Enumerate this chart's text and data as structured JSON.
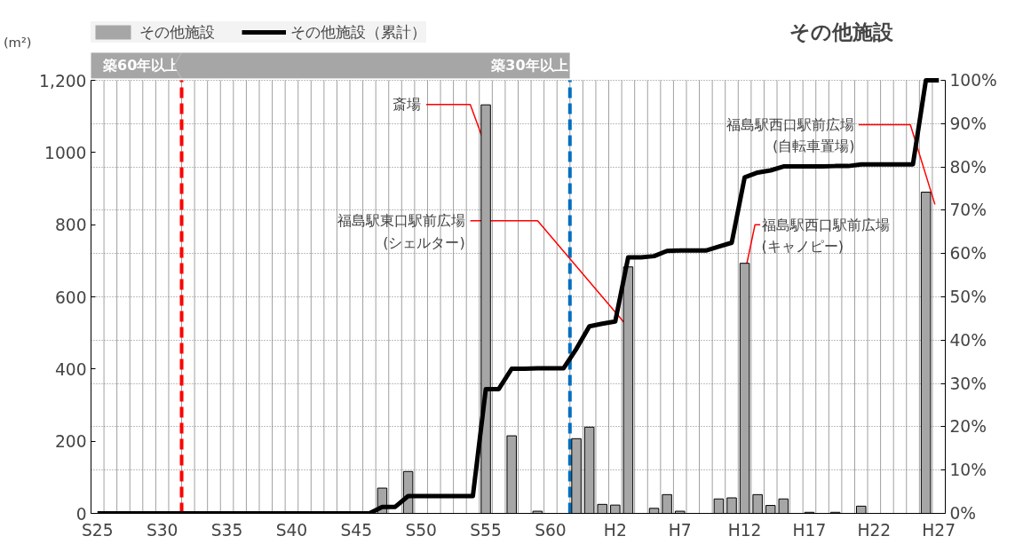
{
  "chart_data": {
    "type": "bar",
    "title": "その他施設",
    "ylabel": "(m²)",
    "categories": [
      "S25",
      null,
      null,
      null,
      null,
      "S30",
      null,
      null,
      null,
      null,
      "S35",
      null,
      null,
      null,
      null,
      "S40",
      null,
      null,
      null,
      null,
      "S45",
      null,
      null,
      null,
      null,
      "S50",
      null,
      null,
      null,
      null,
      "S55",
      null,
      null,
      null,
      null,
      "S60",
      null,
      null,
      null,
      null,
      "H2",
      null,
      null,
      null,
      null,
      "H7",
      null,
      null,
      null,
      null,
      "H12",
      null,
      null,
      null,
      null,
      "H17",
      null,
      null,
      null,
      null,
      "H22",
      null,
      null,
      null,
      null,
      "H27"
    ],
    "series": [
      {
        "name": "その他施設",
        "color": "#a6a6a6",
        "values": [
          0,
          0,
          0,
          0,
          0,
          0,
          0,
          0,
          0,
          0,
          0,
          0,
          0,
          0,
          0,
          0,
          0,
          0,
          0,
          0,
          0,
          0,
          70,
          0,
          116,
          0,
          0,
          0,
          0,
          0,
          1132,
          0,
          215,
          0,
          6,
          0,
          0,
          207,
          239,
          25,
          23,
          683,
          0,
          14,
          52,
          6,
          0,
          0,
          40,
          43,
          693,
          52,
          22,
          40,
          0,
          3,
          0,
          3,
          0,
          20,
          0,
          0,
          0,
          0,
          890,
          0
        ]
      },
      {
        "name": "その他施設（累計）",
        "type": "line",
        "axis": "y2",
        "color": "#000000",
        "values": [
          0,
          0,
          0,
          0,
          0,
          0,
          0,
          0,
          0,
          0,
          0,
          0,
          0,
          0,
          0,
          0,
          0,
          0,
          0,
          0,
          0,
          0,
          1.5,
          1.5,
          4.0,
          4.0,
          4.0,
          4.0,
          4.0,
          4.0,
          28.7,
          28.7,
          33.4,
          33.4,
          33.5,
          33.5,
          33.5,
          38.0,
          43.2,
          43.8,
          44.3,
          59.1,
          59.1,
          59.4,
          60.6,
          60.7,
          60.7,
          60.7,
          61.6,
          62.5,
          77.6,
          78.7,
          79.2,
          80.1,
          80.1,
          80.1,
          80.1,
          80.2,
          80.2,
          80.6,
          80.6,
          80.6,
          80.6,
          80.6,
          100,
          100
        ]
      }
    ],
    "ylim": [
      0,
      1200
    ],
    "yticks": [
      0,
      200,
      400,
      600,
      800,
      1000,
      {
        "value": 1200,
        "label": "1,200"
      }
    ],
    "y2lim": [
      0,
      100
    ],
    "y2ticks": [
      {
        "value": 0,
        "label": "0%"
      },
      {
        "value": 10,
        "label": "10%"
      },
      {
        "value": 20,
        "label": "20%"
      },
      {
        "value": 30,
        "label": "30%"
      },
      {
        "value": 40,
        "label": "40%"
      },
      {
        "value": 50,
        "label": "50%"
      },
      {
        "value": 60,
        "label": "60%"
      },
      {
        "value": 70,
        "label": "70%"
      },
      {
        "value": 80,
        "label": "80%"
      },
      {
        "value": 90,
        "label": "90%"
      },
      {
        "value": 100,
        "label": "100%"
      }
    ],
    "annotations": [
      "築60年以上",
      "築30年以上",
      "斎場",
      "福島駅東口駅前広場\n(シェルター)",
      "福島駅西口駅前広場\n(キャノピー)",
      "福島駅西口駅前広場\n(自転車置場)"
    ],
    "grid": true,
    "legend": "top"
  }
}
